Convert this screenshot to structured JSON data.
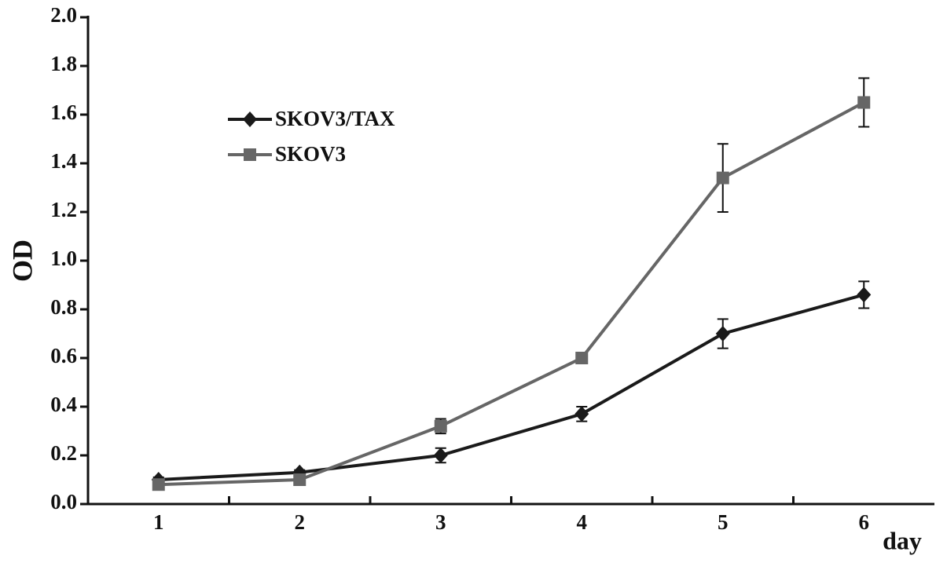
{
  "chart_data": {
    "type": "line",
    "x_label": "day",
    "y_label": "OD",
    "categories": [
      "1",
      "2",
      "3",
      "4",
      "5",
      "6"
    ],
    "series": [
      {
        "name": "SKOV3/TAX",
        "color": "#1a1a1a",
        "marker": "diamond",
        "values": [
          0.1,
          0.13,
          0.2,
          0.37,
          0.7,
          0.86
        ],
        "errors": [
          0.01,
          0.01,
          0.03,
          0.03,
          0.06,
          0.055
        ]
      },
      {
        "name": "SKOV3",
        "color": "#666666",
        "marker": "square",
        "values": [
          0.08,
          0.1,
          0.32,
          0.6,
          1.34,
          1.65
        ],
        "errors": [
          0.01,
          0.01,
          0.03,
          0.01,
          0.14,
          0.1
        ]
      }
    ],
    "ylim": [
      0,
      2
    ],
    "yticks": [
      {
        "value": 0,
        "label": "0.0"
      },
      0.2,
      0.4,
      0.6,
      0.8,
      {
        "value": 1,
        "label": "1.0"
      },
      1.2,
      1.4,
      1.6,
      1.8,
      {
        "value": 2,
        "label": "2.0"
      }
    ],
    "legend": "upper left",
    "grid": false
  }
}
